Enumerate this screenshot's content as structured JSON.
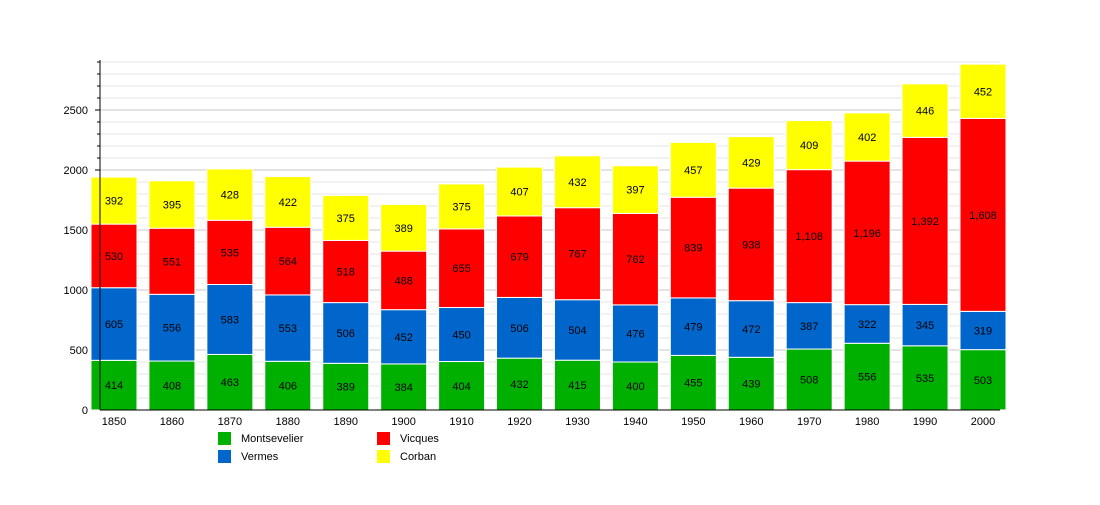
{
  "chart_data": {
    "type": "bar",
    "stacked": true,
    "categories": [
      "1850",
      "1860",
      "1870",
      "1880",
      "1890",
      "1900",
      "1910",
      "1920",
      "1930",
      "1940",
      "1950",
      "1960",
      "1970",
      "1980",
      "1990",
      "2000"
    ],
    "series": [
      {
        "name": "Montsevelier",
        "color": "#00b000",
        "values": [
          414,
          408,
          463,
          406,
          389,
          384,
          404,
          432,
          415,
          400,
          455,
          439,
          508,
          556,
          535,
          503
        ]
      },
      {
        "name": "Vermes",
        "color": "#0066cc",
        "values": [
          605,
          556,
          583,
          553,
          506,
          452,
          450,
          506,
          504,
          476,
          479,
          472,
          387,
          322,
          345,
          319
        ]
      },
      {
        "name": "Vicques",
        "color": "#ff0000",
        "values": [
          530,
          551,
          535,
          564,
          518,
          488,
          655,
          679,
          767,
          762,
          839,
          938,
          1108,
          1196,
          1392,
          1608
        ]
      },
      {
        "name": "Corban",
        "color": "#ffff00",
        "values": [
          392,
          395,
          428,
          422,
          375,
          389,
          375,
          407,
          432,
          397,
          457,
          429,
          409,
          402,
          446,
          452
        ]
      }
    ],
    "yticks": [
      0,
      500,
      1000,
      1500,
      2000,
      2500
    ],
    "ylim": [
      0,
      2900
    ],
    "grid": true,
    "legend": "bottom",
    "title": "",
    "xlabel": "",
    "ylabel": ""
  }
}
